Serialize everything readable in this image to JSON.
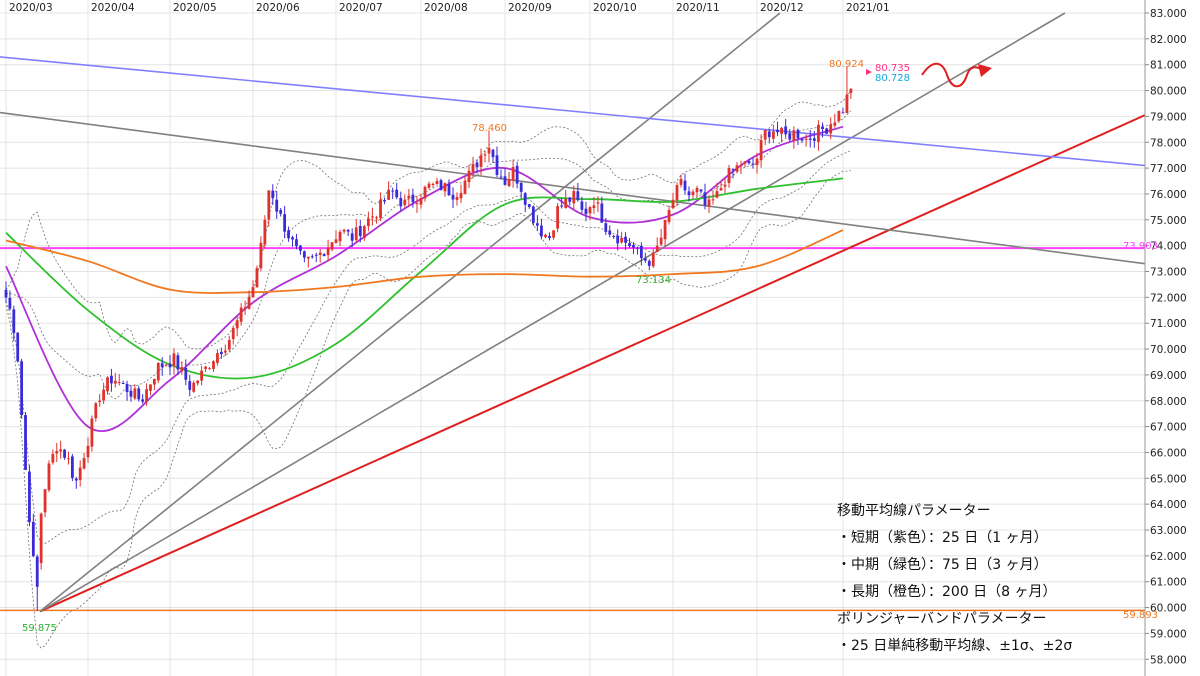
{
  "chart_data": {
    "type": "candlestick",
    "symbol": "",
    "x_ticks": [
      "2020/03",
      "2020/04",
      "2020/05",
      "2020/06",
      "2020/07",
      "2020/08",
      "2020/09",
      "2020/10",
      "2020/11",
      "2020/12",
      "2021/01"
    ],
    "y_ticks": [
      "83.000",
      "82.000",
      "81.000",
      "80.000",
      "79.000",
      "78.000",
      "77.000",
      "76.000",
      "75.000",
      "74.000",
      "73.000",
      "72.000",
      "71.000",
      "70.000",
      "69.000",
      "68.000",
      "67.000",
      "66.000",
      "65.000",
      "64.000",
      "63.000",
      "62.000",
      "61.000",
      "60.000",
      "59.000",
      "58.000"
    ],
    "ylim": [
      57.9,
      83.2
    ],
    "grid": true,
    "price_markers": {
      "last_bid": "80.735",
      "last_ask": "80.728",
      "high_recent": "80.924",
      "peak_sep": "78.460",
      "low_oct": "73.134",
      "low_mar": "59.875",
      "line_h_magenta": "73.903",
      "line_h_orange": "59.893"
    },
    "colors": {
      "up": "#e0322c",
      "down": "#3a2bd8",
      "sma25": "#b030d8",
      "sma75": "#30c030",
      "sma200": "#f07820",
      "band": "#707070",
      "magenta": "#ff40ff",
      "red_trend": "#e02020",
      "gray_trend": "#808080",
      "blue_trend": "#8080ff"
    },
    "legend": [
      "移動平均線パラメーター",
      "・短期（紫色）：25 日（1 ヶ月）",
      "・中期（緑色）：75 日（3 ヶ月）",
      "・長期（橙色）：200 日（8 ヶ月）",
      "ボリンジャーバンドパラメーター",
      "・25 日単純移動平均線、±1σ、±2σ"
    ],
    "series": [
      {
        "name": "短期（紫色）：25 日",
        "x": [
          "2020/03",
          "2020/04",
          "2020/05",
          "2020/06",
          "2020/07",
          "2020/08",
          "2020/09",
          "2020/10",
          "2020/11",
          "2020/12",
          "2021/01"
        ],
        "values": [
          73.2,
          67.0,
          68.8,
          71.8,
          73.6,
          75.8,
          77.0,
          75.1,
          75.2,
          77.5,
          78.6
        ]
      },
      {
        "name": "中期（緑色）：75 日",
        "x": [
          "2020/03",
          "2020/04",
          "2020/05",
          "2020/06",
          "2020/07",
          "2020/08",
          "2020/09",
          "2020/10",
          "2020/11",
          "2020/12",
          "2021/01"
        ],
        "values": [
          74.5,
          71.5,
          69.4,
          68.9,
          70.2,
          73.0,
          75.6,
          75.8,
          75.7,
          76.2,
          76.6
        ]
      },
      {
        "name": "長期（橙色）：200 日",
        "x": [
          "2020/03",
          "2020/04",
          "2020/05",
          "2020/06",
          "2020/07",
          "2020/08",
          "2020/09",
          "2020/10",
          "2020/11",
          "2020/12",
          "2021/01"
        ],
        "values": [
          74.2,
          73.4,
          72.3,
          72.2,
          72.4,
          72.8,
          72.9,
          72.8,
          72.9,
          73.2,
          74.6
        ]
      }
    ],
    "candles_monthly_summary": [
      {
        "month": "2020/03",
        "open": 72.0,
        "high": 72.8,
        "low": 59.875,
        "close": 62.5
      },
      {
        "month": "2020/04",
        "open": 62.5,
        "high": 69.2,
        "low": 62.0,
        "close": 69.0
      },
      {
        "month": "2020/05",
        "open": 69.0,
        "high": 70.0,
        "low": 67.8,
        "close": 69.5
      },
      {
        "month": "2020/06",
        "open": 69.5,
        "high": 76.8,
        "low": 69.0,
        "close": 73.2
      },
      {
        "month": "2020/07",
        "open": 73.2,
        "high": 77.0,
        "low": 72.8,
        "close": 75.5
      },
      {
        "month": "2020/08",
        "open": 75.5,
        "high": 76.8,
        "low": 75.2,
        "close": 76.5
      },
      {
        "month": "2020/09",
        "open": 76.5,
        "high": 78.46,
        "low": 74.0,
        "close": 75.0
      },
      {
        "month": "2020/10",
        "open": 75.0,
        "high": 76.1,
        "low": 73.134,
        "close": 74.0
      },
      {
        "month": "2020/11",
        "open": 74.0,
        "high": 77.5,
        "low": 73.8,
        "close": 77.0
      },
      {
        "month": "2020/12",
        "open": 77.0,
        "high": 79.0,
        "low": 77.2,
        "close": 78.8
      },
      {
        "month": "2021/01",
        "open": 78.8,
        "high": 80.924,
        "low": 78.5,
        "close": 80.735
      }
    ]
  }
}
